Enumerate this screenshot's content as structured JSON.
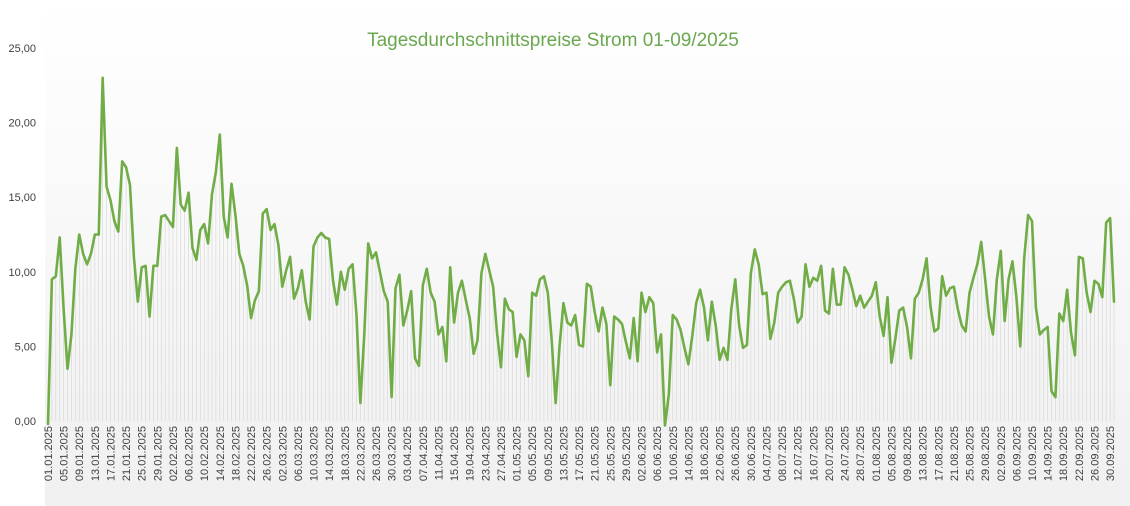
{
  "chart_data": {
    "type": "line",
    "title": "Tagesdurchschnittspreise Strom 01-09/2025",
    "xlabel": "",
    "ylabel": "",
    "ylim": [
      0,
      25
    ],
    "y_ticks": [
      "0,00",
      "5,00",
      "10,00",
      "15,00",
      "20,00",
      "25,00"
    ],
    "x_range": [
      "01.01.2025",
      "30.09.2025"
    ],
    "x_ticks": [
      "01.01.2025",
      "05.01.2025",
      "09.01.2025",
      "13.01.2025",
      "17.01.2025",
      "21.01.2025",
      "25.01.2025",
      "29.01.2025",
      "02.02.2025",
      "06.02.2025",
      "10.02.2025",
      "14.02.2025",
      "18.02.2025",
      "22.02.2025",
      "26.02.2025",
      "02.03.2025",
      "06.03.2025",
      "10.03.2025",
      "14.03.2025",
      "18.03.2025",
      "22.03.2025",
      "26.03.2025",
      "30.03.2025",
      "03.04.2025",
      "07.04.2025",
      "11.04.2025",
      "15.04.2025",
      "19.04.2025",
      "23.04.2025",
      "27.04.2025",
      "01.05.2025",
      "05.05.2025",
      "09.05.2025",
      "13.05.2025",
      "17.05.2025",
      "21.05.2025",
      "25.05.2025",
      "29.05.2025",
      "02.06.2025",
      "06.06.2025",
      "10.06.2025",
      "14.06.2025",
      "18.06.2025",
      "22.06.2025",
      "26.06.2025",
      "30.06.2025",
      "04.07.2025",
      "08.07.2025",
      "12.07.2025",
      "16.07.2025",
      "20.07.2025",
      "24.07.2025",
      "28.07.2025",
      "01.08.2025",
      "05.08.2025",
      "09.08.2025",
      "13.08.2025",
      "17.08.2025",
      "21.08.2025",
      "25.08.2025",
      "29.08.2025",
      "02.09.2025",
      "06.09.2025",
      "10.09.2025",
      "14.09.2025",
      "18.09.2025",
      "22.09.2025",
      "26.09.2025",
      "30.09.2025"
    ],
    "series": [
      {
        "color": "#70ad47",
        "values": [
          -0.2,
          9.5,
          9.7,
          12.3,
          7.5,
          3.5,
          5.8,
          10.2,
          12.5,
          11.2,
          10.5,
          11.2,
          12.5,
          12.5,
          23.0,
          15.7,
          14.8,
          13.4,
          12.7,
          17.4,
          17.0,
          15.8,
          11.0,
          8.0,
          10.3,
          10.4,
          7.0,
          10.4,
          10.4,
          13.7,
          13.8,
          13.4,
          13.0,
          18.3,
          14.5,
          14.1,
          15.3,
          11.6,
          10.8,
          12.8,
          13.2,
          11.9,
          15.2,
          16.7,
          19.2,
          13.7,
          12.3,
          15.9,
          13.8,
          11.2,
          10.4,
          9.1,
          6.9,
          8.1,
          8.7,
          13.9,
          14.2,
          12.8,
          13.2,
          11.8,
          9.0,
          10.1,
          11.0,
          8.2,
          8.9,
          10.1,
          8.0,
          6.8,
          11.7,
          12.3,
          12.6,
          12.3,
          12.2,
          9.4,
          7.8,
          10.0,
          8.8,
          10.2,
          10.5,
          7.1,
          1.2,
          5.8,
          11.9,
          10.9,
          11.3,
          10.0,
          8.7,
          8.0,
          1.6,
          8.9,
          9.8,
          6.4,
          7.4,
          8.7,
          4.2,
          3.7,
          9.1,
          10.2,
          8.6,
          8.0,
          5.8,
          6.3,
          4.0,
          10.3,
          6.6,
          8.6,
          9.4,
          8.1,
          6.9,
          4.5,
          5.4,
          9.9,
          11.2,
          10.1,
          9.0,
          5.9,
          3.6,
          8.2,
          7.5,
          7.3,
          4.3,
          5.8,
          5.4,
          3.0,
          8.6,
          8.4,
          9.5,
          9.7,
          8.6,
          5.4,
          1.2,
          5.0,
          7.9,
          6.6,
          6.4,
          7.1,
          5.1,
          5.0,
          9.2,
          9.0,
          7.3,
          6.0,
          7.6,
          6.5,
          2.4,
          7.0,
          6.8,
          6.5,
          5.3,
          4.2,
          6.9,
          4.0,
          8.6,
          7.3,
          8.3,
          7.9,
          4.6,
          5.8,
          -0.3,
          1.8,
          7.1,
          6.8,
          6.1,
          4.9,
          3.8,
          5.7,
          7.9,
          8.8,
          7.6,
          5.4,
          8.0,
          6.4,
          4.1,
          4.9,
          4.1,
          7.5,
          9.5,
          6.4,
          4.9,
          5.1,
          9.9,
          11.5,
          10.5,
          8.5,
          8.6,
          5.5,
          6.6,
          8.6,
          9.0,
          9.3,
          9.4,
          8.2,
          6.6,
          7.0,
          10.5,
          9.0,
          9.6,
          9.4,
          10.4,
          7.4,
          7.2,
          10.2,
          7.8,
          7.8,
          10.3,
          9.8,
          8.8,
          7.7,
          8.4,
          7.6,
          8.0,
          8.4,
          9.3,
          7.0,
          5.7,
          8.3,
          3.9,
          5.5,
          7.4,
          7.6,
          6.3,
          4.2,
          8.2,
          8.6,
          9.5,
          10.9,
          7.7,
          6.0,
          6.2,
          9.7,
          8.4,
          8.9,
          9.0,
          7.5,
          6.4,
          6.0,
          8.6,
          9.6,
          10.5,
          12.0,
          9.5,
          7.0,
          5.8,
          9.5,
          11.4,
          6.7,
          9.5,
          10.7,
          8.3,
          5.0,
          10.9,
          13.8,
          13.4,
          7.6,
          5.8,
          6.1,
          6.3,
          2.0,
          1.6,
          7.2,
          6.7,
          8.8,
          5.9,
          4.4,
          11.0,
          10.9,
          8.6,
          7.3,
          9.4,
          9.2,
          8.3,
          13.3,
          13.6,
          8.0
        ]
      }
    ],
    "grid": false,
    "legend": "none",
    "background_gradient": [
      "#ffffff",
      "#f0f0f0"
    ],
    "axis_text_color": "#404040"
  }
}
